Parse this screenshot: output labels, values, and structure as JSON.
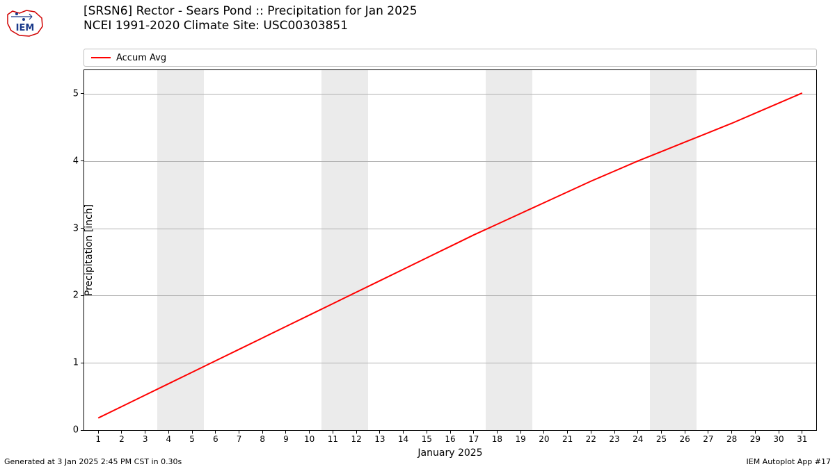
{
  "title_line1": "[SRSN6] Rector - Sears Pond :: Precipitation for Jan 2025",
  "title_line2": "NCEI 1991-2020 Climate Site: USC00303851",
  "legend_label": "Accum Avg",
  "ylabel": "Precipitation [inch]",
  "xlabel": "January 2025",
  "footer_left": "Generated at 3 Jan 2025 2:45 PM CST in 0.30s",
  "footer_right": "IEM Autoplot App #17",
  "chart": {
    "type": "line",
    "background_color": "#ffffff",
    "band_color": "#ebebeb",
    "grid_color": "#b0b0b0",
    "line_color": "#ff0000",
    "line_width": 2,
    "ylim": [
      0,
      5.35
    ],
    "yticks": [
      0,
      1,
      2,
      3,
      4,
      5
    ],
    "xlim": [
      0.4,
      31.6
    ],
    "xticks": [
      1,
      2,
      3,
      4,
      5,
      6,
      7,
      8,
      9,
      10,
      11,
      12,
      13,
      14,
      15,
      16,
      17,
      18,
      19,
      20,
      21,
      22,
      23,
      24,
      25,
      26,
      27,
      28,
      29,
      30,
      31
    ],
    "weekend_bands": [
      [
        3.5,
        5.5
      ],
      [
        10.5,
        12.5
      ],
      [
        17.5,
        19.5
      ],
      [
        24.5,
        26.5
      ]
    ],
    "series": {
      "x": [
        1,
        2,
        3,
        4,
        5,
        6,
        7,
        8,
        9,
        10,
        11,
        12,
        13,
        14,
        15,
        16,
        17,
        18,
        19,
        20,
        21,
        22,
        23,
        24,
        25,
        26,
        27,
        28,
        29,
        30,
        31
      ],
      "y": [
        0.18,
        0.35,
        0.52,
        0.69,
        0.86,
        1.03,
        1.2,
        1.37,
        1.54,
        1.71,
        1.88,
        2.05,
        2.22,
        2.39,
        2.56,
        2.73,
        2.9,
        3.06,
        3.22,
        3.38,
        3.54,
        3.7,
        3.85,
        4.0,
        4.14,
        4.28,
        4.42,
        4.56,
        4.71,
        4.86,
        5.01
      ]
    }
  }
}
